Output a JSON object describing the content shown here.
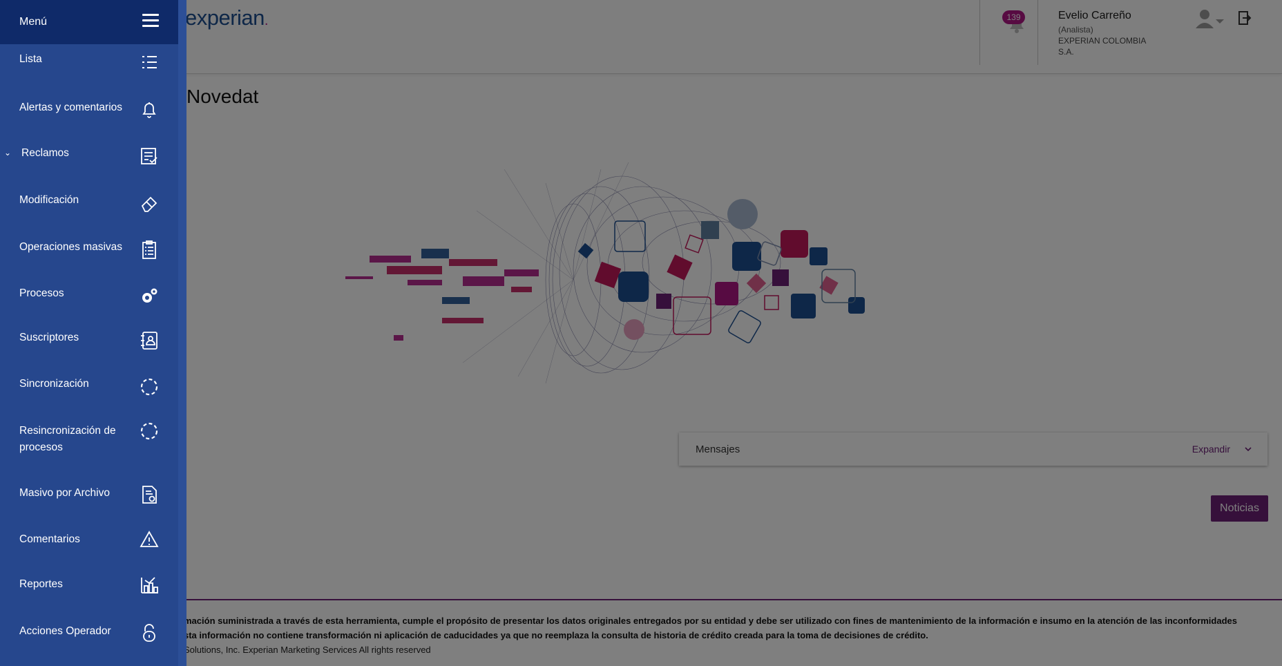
{
  "header": {
    "logo_text": "experian",
    "notifications_count": "139",
    "user": {
      "name": "Evelio Carreño",
      "role": "(Analista)",
      "organization": "EXPERIAN COLOMBIA S.A."
    }
  },
  "main": {
    "title": "Novedat",
    "messages": {
      "label": "Mensajes",
      "expand_label": "Expandir"
    },
    "news_button": "Noticias"
  },
  "footer": {
    "line1": "mación suministrada a través de esta herramienta, cumple el propósito de presentar los datos originales entregados por su entidad y debe ser utilizado con fines de mantenimiento de la información e insumo en la atención de las inconformidades",
    "line2": "sta información no contiene transformación ni aplicación de caducidades ya que no reemplaza la consulta de historia de crédito creada para la toma de decisiones de crédito.",
    "line3": "Solutions, Inc. Experian Marketing Services All rights reserved"
  },
  "sidebar": {
    "title": "Menú",
    "items": [
      {
        "label": "Lista",
        "icon": "list-icon"
      },
      {
        "label": "Alertas y comentarios",
        "icon": "bell-icon"
      },
      {
        "label": "Reclamos",
        "icon": "checklist-icon",
        "expanded": true
      },
      {
        "label": "Modificación",
        "icon": "eraser-icon"
      },
      {
        "label": "Operaciones masivas",
        "icon": "clipboard-list-icon"
      },
      {
        "label": "Procesos",
        "icon": "gears-icon"
      },
      {
        "label": "Suscriptores",
        "icon": "address-book-icon"
      },
      {
        "label": "Sincronización",
        "icon": "sync-dashed-circle-icon"
      },
      {
        "label": "Resincronización de procesos",
        "icon": "resync-dashed-circle-icon"
      },
      {
        "label": "Masivo por Archivo",
        "icon": "file-gear-icon"
      },
      {
        "label": "Comentarios",
        "icon": "warning-icon"
      },
      {
        "label": "Reportes",
        "icon": "report-chart-icon"
      },
      {
        "label": "Acciones Operador",
        "icon": "padlock-icon"
      }
    ]
  },
  "colors": {
    "brand_blue": "#1d4f91",
    "brand_purple": "#6d2077",
    "badge_magenta": "#af1685",
    "sidebar_bg": "#26478d",
    "sidebar_header_bg": "#0f2a69"
  }
}
